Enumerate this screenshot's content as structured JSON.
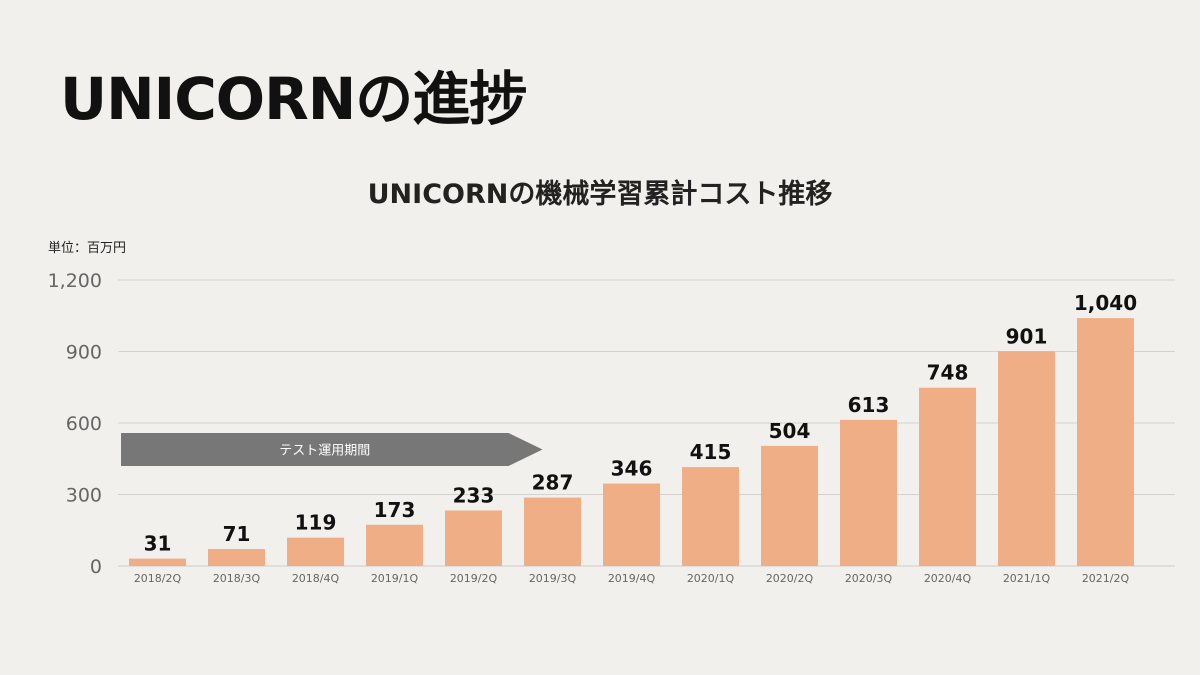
{
  "page": {
    "title": "UNICORNの進捗"
  },
  "chart_data": {
    "type": "bar",
    "title": "UNICORNの機械学習累計コスト推移",
    "unit_label": "単位：百万円",
    "categories": [
      "2018/2Q",
      "2018/3Q",
      "2018/4Q",
      "2019/1Q",
      "2019/2Q",
      "2019/3Q",
      "2019/4Q",
      "2020/1Q",
      "2020/2Q",
      "2020/3Q",
      "2020/4Q",
      "2021/1Q",
      "2021/2Q"
    ],
    "values": [
      31,
      71,
      119,
      173,
      233,
      287,
      346,
      415,
      504,
      613,
      748,
      901,
      1040
    ],
    "value_labels": [
      "31",
      "71",
      "119",
      "173",
      "233",
      "287",
      "346",
      "415",
      "504",
      "613",
      "748",
      "901",
      "1,040"
    ],
    "ylim": [
      0,
      1200
    ],
    "yticks": [
      0,
      300,
      600,
      900,
      1200
    ],
    "ytick_labels": [
      "0",
      "300",
      "600",
      "900",
      "1,200"
    ],
    "grid": true,
    "bar_color": "#efae85",
    "annotation": {
      "text": "テスト運用期間",
      "color": "#777777",
      "from_category": "2018/2Q",
      "to_category": "2019/3Q"
    }
  }
}
